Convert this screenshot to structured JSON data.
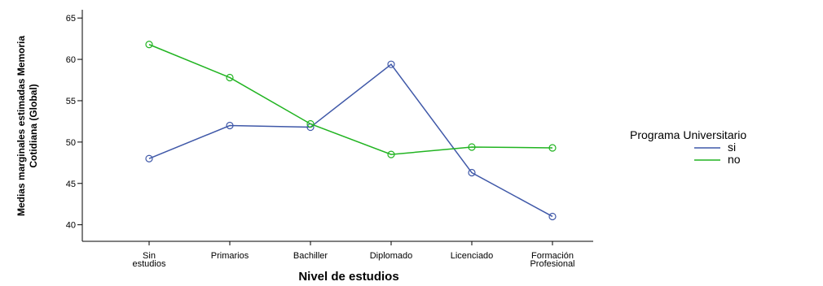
{
  "chart_data": {
    "type": "line",
    "categories": [
      "Sin\nestudios",
      "Primarios",
      "Bachiller",
      "Diplomado",
      "Licenciado",
      "Formación\nProfesional"
    ],
    "series": [
      {
        "name": "si",
        "color": "#3f58a8",
        "values": [
          48.0,
          52.0,
          51.8,
          59.4,
          46.3,
          41.0
        ]
      },
      {
        "name": "no",
        "color": "#21b421",
        "values": [
          61.8,
          57.8,
          52.2,
          48.5,
          49.4,
          49.3
        ]
      }
    ],
    "title": "",
    "xlabel": "Nivel de estudios",
    "ylabel": "Medias marginales estimadas Memoria\nCotidiana (Global)",
    "ylim": [
      38,
      66
    ],
    "yticks": [
      40,
      45,
      50,
      55,
      60,
      65
    ],
    "legend": {
      "title": "Programa Universitario",
      "placement": "right"
    },
    "grid": false,
    "marker": "open-circle"
  }
}
